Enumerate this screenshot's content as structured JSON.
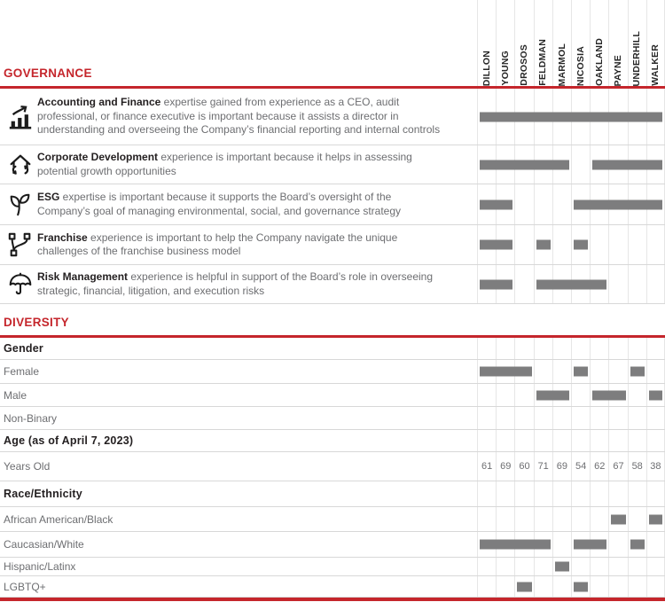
{
  "colors": {
    "accent_red": "#c5262c",
    "bar_gray": "#7d7d7e",
    "grid_line": "#e6e6e6",
    "row_line": "#d8d8d8",
    "text_gray": "#6d6e71",
    "text_dark": "#231f20"
  },
  "members": [
    "DILLON",
    "YOUNG",
    "DROSOS",
    "FELDMAN",
    "MARMOL",
    "NICOSIA",
    "OAKLAND",
    "PAYNE",
    "UNDERHILL",
    "WALKER"
  ],
  "governance": {
    "title": "GOVERNANCE",
    "rows": [
      {
        "icon": "bar-chart-growth-icon",
        "bold": "Accounting and Finance",
        "text": " expertise gained from experience as a CEO, audit professional, or finance executive is important because it assists a director in understanding and overseeing the Company’s financial reporting and internal controls",
        "marks": [
          1,
          1,
          1,
          1,
          1,
          1,
          1,
          1,
          1,
          1
        ]
      },
      {
        "icon": "house-growth-icon",
        "bold": "Corporate Development",
        "text": " experience is important because it helps in assessing potential growth opportunities",
        "marks": [
          1,
          1,
          1,
          1,
          1,
          0,
          1,
          1,
          1,
          1
        ]
      },
      {
        "icon": "leaf-icon",
        "bold": "ESG",
        "text": " expertise is important because it supports the Board’s oversight of the Company’s goal of managing environmental, social, and governance strategy",
        "marks": [
          1,
          1,
          0,
          0,
          0,
          1,
          1,
          1,
          1,
          1
        ]
      },
      {
        "icon": "branch-network-icon",
        "bold": "Franchise",
        "text": " experience is important to help the Company navigate the unique challenges of the franchise business model",
        "marks": [
          1,
          1,
          0,
          1,
          0,
          1,
          0,
          0,
          0,
          0
        ]
      },
      {
        "icon": "umbrella-icon",
        "bold": "Risk Management",
        "text": " experience is helpful in support of the Board’s role in overseeing strategic, financial, litigation, and execution risks",
        "marks": [
          1,
          1,
          0,
          1,
          1,
          1,
          1,
          0,
          0,
          0
        ]
      }
    ]
  },
  "diversity": {
    "title": "DIVERSITY",
    "gender_header": "Gender",
    "gender_rows": [
      {
        "label": "Female",
        "marks": [
          1,
          1,
          1,
          0,
          0,
          1,
          0,
          0,
          1,
          0
        ]
      },
      {
        "label": "Male",
        "marks": [
          0,
          0,
          0,
          1,
          1,
          0,
          1,
          1,
          0,
          1
        ]
      },
      {
        "label": "Non-Binary",
        "marks": [
          0,
          0,
          0,
          0,
          0,
          0,
          0,
          0,
          0,
          0
        ]
      }
    ],
    "age_header": "Age (as of April 7, 2023)",
    "age_row_label": "Years Old",
    "ages": [
      "61",
      "69",
      "60",
      "71",
      "69",
      "54",
      "62",
      "67",
      "58",
      "38"
    ],
    "race_header": "Race/Ethnicity",
    "race_rows": [
      {
        "label": "African American/Black",
        "marks": [
          0,
          0,
          0,
          0,
          0,
          0,
          0,
          1,
          0,
          1
        ]
      },
      {
        "label": "Caucasian/White",
        "marks": [
          1,
          1,
          1,
          1,
          0,
          1,
          1,
          0,
          1,
          0
        ]
      },
      {
        "label": "Hispanic/Latinx",
        "marks": [
          0,
          0,
          0,
          0,
          1,
          0,
          0,
          0,
          0,
          0
        ]
      },
      {
        "label": "LGBTQ+",
        "marks": [
          0,
          0,
          1,
          0,
          0,
          1,
          0,
          0,
          0,
          0
        ]
      }
    ]
  }
}
